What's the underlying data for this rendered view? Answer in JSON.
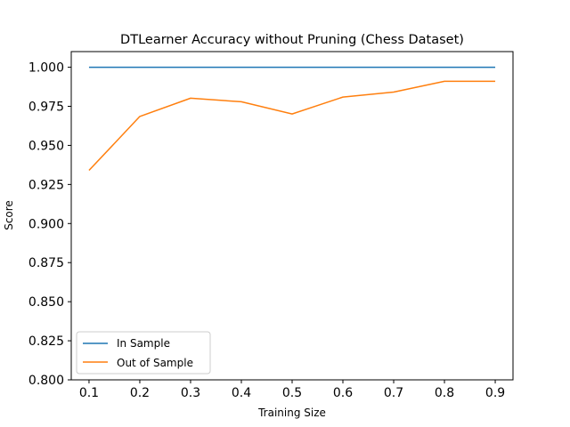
{
  "chart_data": {
    "type": "line",
    "title": "DTLearner Accuracy without Pruning (Chess Dataset)",
    "xlabel": "Training Size",
    "ylabel": "Score",
    "x": [
      0.1,
      0.2,
      0.3,
      0.4,
      0.5,
      0.6,
      0.7,
      0.8,
      0.9
    ],
    "xlim": [
      0.065,
      0.935
    ],
    "ylim": [
      0.8,
      1.01
    ],
    "xticks": [
      "0.1",
      "0.2",
      "0.3",
      "0.4",
      "0.5",
      "0.6",
      "0.7",
      "0.8",
      "0.9"
    ],
    "yticks": [
      "0.800",
      "0.825",
      "0.850",
      "0.875",
      "0.900",
      "0.925",
      "0.950",
      "0.975",
      "1.000"
    ],
    "grid": false,
    "legend_position": "lower-left",
    "series": [
      {
        "name": "In Sample",
        "color": "#1f77b4",
        "values": [
          1.0,
          1.0,
          1.0,
          1.0,
          1.0,
          1.0,
          1.0,
          1.0,
          1.0
        ]
      },
      {
        "name": "Out of Sample",
        "color": "#ff7f0e",
        "values": [
          0.934,
          0.9685,
          0.9802,
          0.9779,
          0.9701,
          0.9809,
          0.9841,
          0.991,
          0.991
        ]
      }
    ]
  }
}
